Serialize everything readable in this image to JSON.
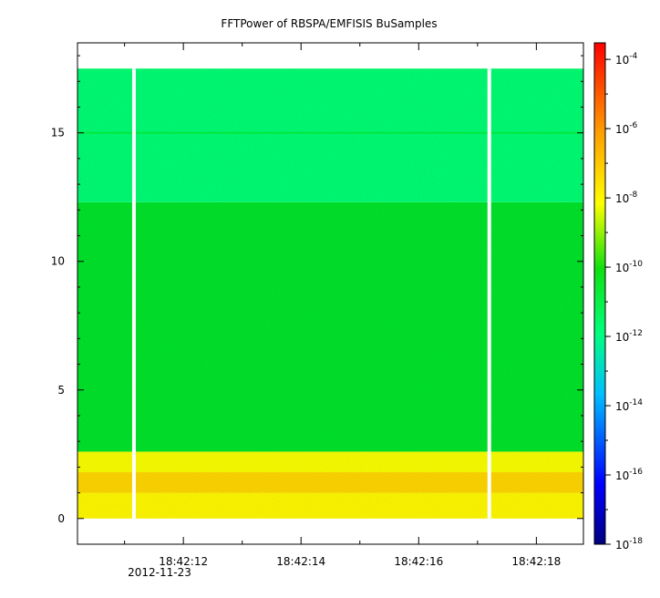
{
  "chart_data": {
    "type": "heatmap",
    "title": "FFTPower of RBSPA/EMFISIS  BuSamples",
    "x": {
      "range_seconds": [
        "18:42:10.2",
        "18:42:18.8"
      ],
      "major_ticks": [
        "18:42:12",
        "18:42:14",
        "18:42:16",
        "18:42:18"
      ],
      "minor_ticks": [
        "18:42:10.2",
        "18:42:11",
        "18:42:13",
        "18:42:15",
        "18:42:17",
        "18:42:18.8"
      ],
      "date_label": "2012-11-23"
    },
    "y": {
      "ylim": [
        -1,
        18.5
      ],
      "ticks": [
        0,
        5,
        10,
        15
      ],
      "tick_labels": [
        "0",
        "5",
        "10",
        "15"
      ],
      "data_max": 17.5,
      "bands": [
        {
          "from": 0,
          "to": 1.0,
          "log_power": -8.0
        },
        {
          "from": 1.0,
          "to": 1.8,
          "log_power": -7.3
        },
        {
          "from": 1.8,
          "to": 2.6,
          "log_power": -8.2
        },
        {
          "from": 2.6,
          "to": 12.3,
          "log_power": -10.3
        },
        {
          "from": 12.3,
          "to": 17.5,
          "log_power": -11.8
        }
      ],
      "line_at": 15.0,
      "line_log_power": -10.6
    },
    "gaps": [
      "18:42:11.16",
      "18:42:17.2"
    ],
    "colorbar": {
      "scale": "log",
      "range": [
        "1e-18",
        "3e-4"
      ],
      "tick_base": "10",
      "tick_exponents": [
        "-4",
        "-6",
        "-8",
        "-10",
        "-12",
        "-14",
        "-16",
        "-18"
      ],
      "colors": [
        "#00007f",
        "#0000ff",
        "#00bfff",
        "#00ff7f",
        "#00e020",
        "#ffff00",
        "#ff9f00",
        "#ff0000"
      ]
    },
    "grid": false
  }
}
